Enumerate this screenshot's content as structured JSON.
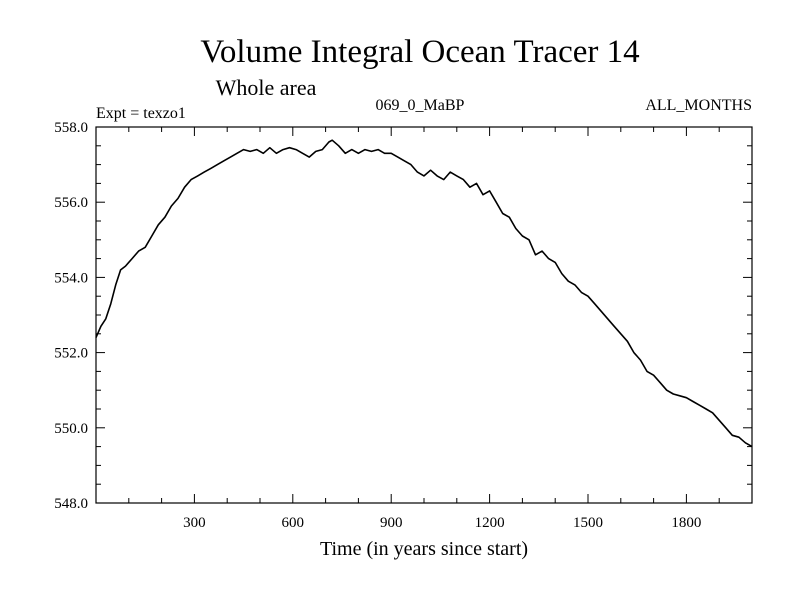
{
  "chart_data": {
    "type": "line",
    "title": "Volume Integral Ocean Tracer 14",
    "subtitle": "Whole area",
    "annotations": {
      "left": "Expt = texzo1",
      "center": "069_0_MaBP",
      "right": "ALL_MONTHS"
    },
    "xlabel": "Time (in years since start)",
    "ylabel": "",
    "xlim": [
      0,
      2000
    ],
    "ylim": [
      548.0,
      558.0
    ],
    "x_ticks": [
      300,
      600,
      900,
      1200,
      1500,
      1800
    ],
    "x_tick_labels": [
      "300",
      "600",
      "900",
      "1200",
      "1500",
      "1800"
    ],
    "y_ticks": [
      548.0,
      550.0,
      552.0,
      554.0,
      556.0,
      558.0
    ],
    "y_tick_labels": [
      "548.0",
      "550.0",
      "552.0",
      "554.0",
      "556.0",
      "558.0"
    ],
    "grid": false,
    "series": [
      {
        "x": [
          0,
          15,
          30,
          45,
          60,
          75,
          90,
          110,
          130,
          150,
          170,
          190,
          210,
          230,
          250,
          270,
          290,
          310,
          330,
          350,
          370,
          390,
          410,
          430,
          450,
          470,
          490,
          510,
          530,
          550,
          570,
          590,
          610,
          630,
          650,
          670,
          690,
          710,
          720,
          740,
          760,
          780,
          800,
          820,
          840,
          860,
          880,
          900,
          920,
          940,
          960,
          980,
          1000,
          1020,
          1040,
          1060,
          1080,
          1100,
          1120,
          1140,
          1160,
          1180,
          1200,
          1220,
          1240,
          1260,
          1280,
          1300,
          1320,
          1340,
          1360,
          1380,
          1400,
          1420,
          1440,
          1460,
          1480,
          1500,
          1520,
          1540,
          1560,
          1580,
          1600,
          1620,
          1640,
          1660,
          1680,
          1700,
          1720,
          1740,
          1760,
          1780,
          1800,
          1820,
          1840,
          1860,
          1880,
          1900,
          1920,
          1940,
          1960,
          1980,
          2000
        ],
        "y": [
          552.4,
          552.7,
          552.9,
          553.3,
          553.8,
          554.2,
          554.3,
          554.5,
          554.7,
          554.8,
          555.1,
          555.4,
          555.6,
          555.9,
          556.1,
          556.4,
          556.6,
          556.7,
          556.8,
          556.9,
          557.0,
          557.1,
          557.2,
          557.3,
          557.4,
          557.35,
          557.4,
          557.3,
          557.45,
          557.3,
          557.4,
          557.45,
          557.4,
          557.3,
          557.2,
          557.35,
          557.4,
          557.6,
          557.65,
          557.5,
          557.3,
          557.4,
          557.3,
          557.4,
          557.35,
          557.4,
          557.3,
          557.3,
          557.2,
          557.1,
          557.0,
          556.8,
          556.7,
          556.85,
          556.7,
          556.6,
          556.8,
          556.7,
          556.6,
          556.4,
          556.5,
          556.2,
          556.3,
          556.0,
          555.7,
          555.6,
          555.3,
          555.1,
          555.0,
          554.6,
          554.7,
          554.5,
          554.4,
          554.1,
          553.9,
          553.8,
          553.6,
          553.5,
          553.3,
          553.1,
          552.9,
          552.7,
          552.5,
          552.3,
          552.0,
          551.8,
          551.5,
          551.4,
          551.2,
          551.0,
          550.9,
          550.85,
          550.8,
          550.7,
          550.6,
          550.5,
          550.4,
          550.2,
          550.0,
          549.8,
          549.75,
          549.6,
          549.5
        ]
      }
    ]
  }
}
